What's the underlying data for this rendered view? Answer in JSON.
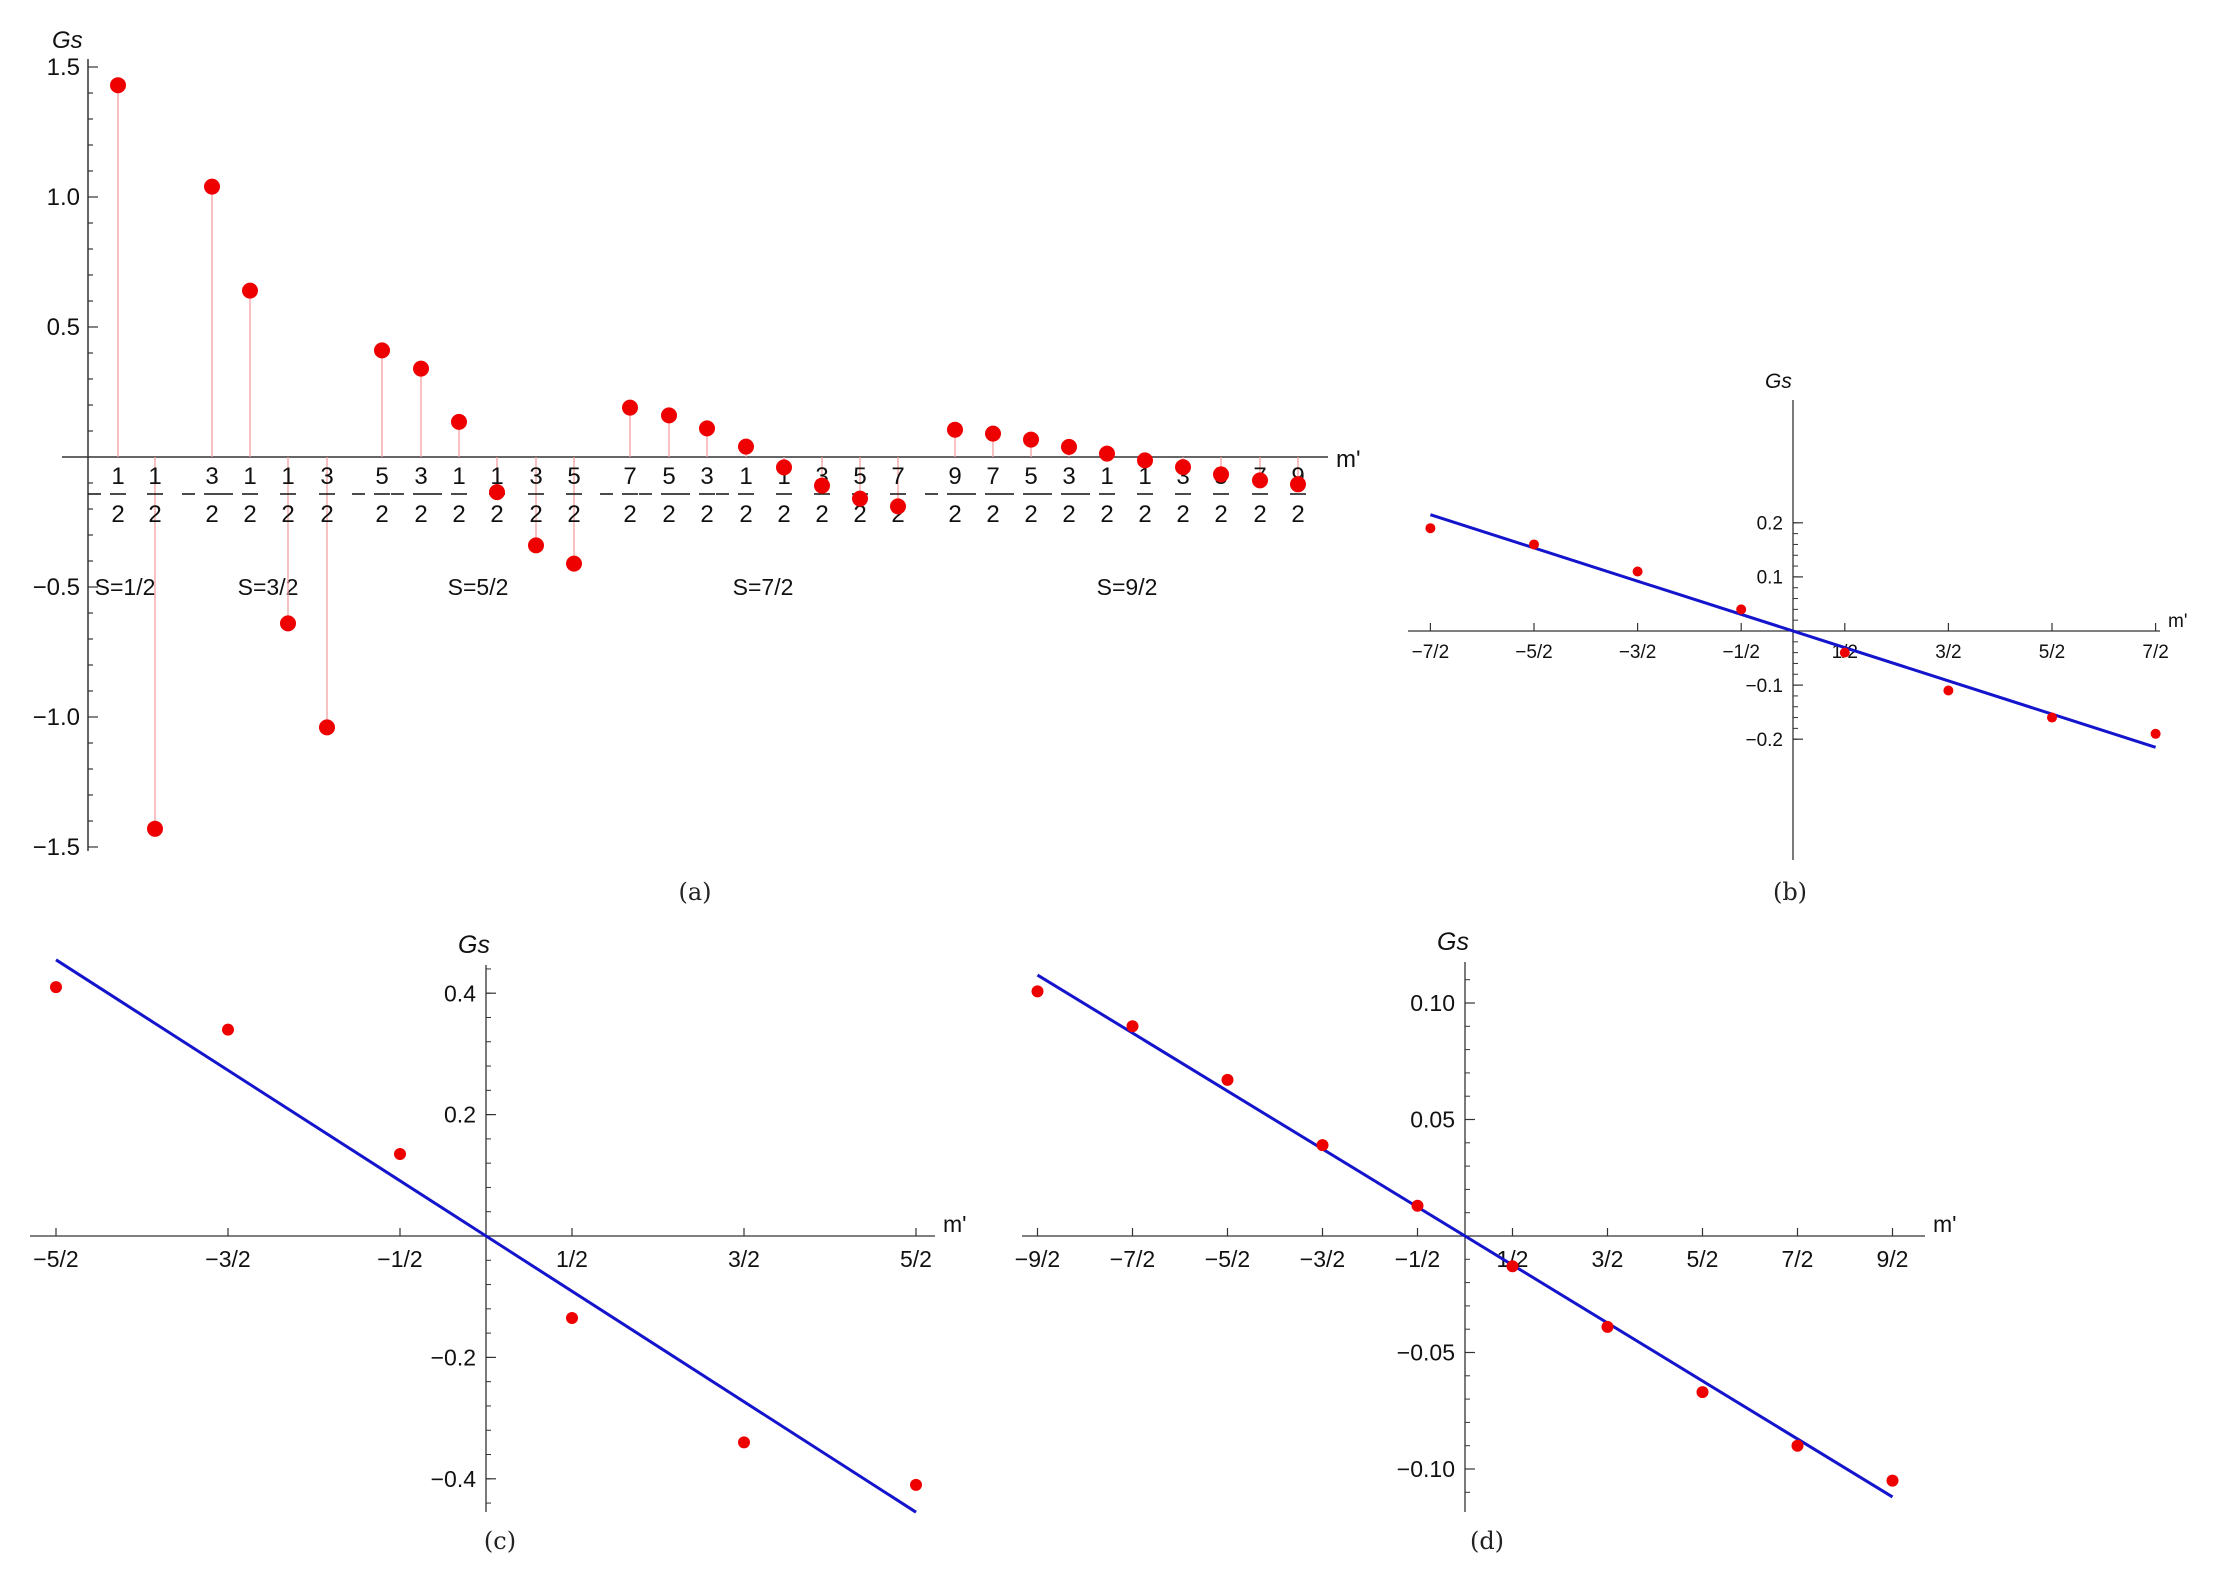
{
  "colors": {
    "points": "#ee0000",
    "stems": "#f3a0a0",
    "fit_line": "#1414cc",
    "axes": "#333333"
  },
  "chart_data": [
    {
      "panel": "a",
      "type": "scatter",
      "caption": "(a)",
      "xlabel": "m'",
      "ylabel": "Gs",
      "ylim": [
        -1.5,
        1.5
      ],
      "yticks": [
        "1.5",
        "1.0",
        "0.5",
        "−0.5",
        "−1.0",
        "−1.5"
      ],
      "groups": [
        {
          "label": "S=1/2",
          "points": [
            {
              "num": "1",
              "neg": true,
              "value": 1.43
            },
            {
              "num": "1",
              "neg": false,
              "value": -1.43
            }
          ]
        },
        {
          "label": "S=3/2",
          "points": [
            {
              "num": "3",
              "neg": true,
              "value": 1.04
            },
            {
              "num": "1",
              "neg": true,
              "value": 0.64
            },
            {
              "num": "1",
              "neg": false,
              "value": -0.64
            },
            {
              "num": "3",
              "neg": false,
              "value": -1.04
            }
          ]
        },
        {
          "label": "S=5/2",
          "points": [
            {
              "num": "5",
              "neg": true,
              "value": 0.41
            },
            {
              "num": "3",
              "neg": true,
              "value": 0.34
            },
            {
              "num": "1",
              "neg": true,
              "value": 0.135
            },
            {
              "num": "1",
              "neg": false,
              "value": -0.135
            },
            {
              "num": "3",
              "neg": false,
              "value": -0.34
            },
            {
              "num": "5",
              "neg": false,
              "value": -0.41
            }
          ]
        },
        {
          "label": "S=7/2",
          "points": [
            {
              "num": "7",
              "neg": true,
              "value": 0.19
            },
            {
              "num": "5",
              "neg": true,
              "value": 0.16
            },
            {
              "num": "3",
              "neg": true,
              "value": 0.11
            },
            {
              "num": "1",
              "neg": true,
              "value": 0.04
            },
            {
              "num": "1",
              "neg": false,
              "value": -0.04
            },
            {
              "num": "3",
              "neg": false,
              "value": -0.11
            },
            {
              "num": "5",
              "neg": false,
              "value": -0.16
            },
            {
              "num": "7",
              "neg": false,
              "value": -0.19
            }
          ]
        },
        {
          "label": "S=9/2",
          "points": [
            {
              "num": "9",
              "neg": true,
              "value": 0.105
            },
            {
              "num": "7",
              "neg": true,
              "value": 0.09
            },
            {
              "num": "5",
              "neg": true,
              "value": 0.067
            },
            {
              "num": "3",
              "neg": true,
              "value": 0.039
            },
            {
              "num": "1",
              "neg": true,
              "value": 0.013
            },
            {
              "num": "1",
              "neg": false,
              "value": -0.013
            },
            {
              "num": "3",
              "neg": false,
              "value": -0.039
            },
            {
              "num": "5",
              "neg": false,
              "value": -0.067
            },
            {
              "num": "7",
              "neg": false,
              "value": -0.09
            },
            {
              "num": "9",
              "neg": false,
              "value": -0.105
            }
          ]
        }
      ]
    },
    {
      "panel": "b",
      "type": "scatter",
      "caption": "(b)",
      "xlabel": "m'",
      "ylabel": "Gs",
      "xlim": [
        -3.5,
        3.5
      ],
      "ylim": [
        -0.2,
        0.2
      ],
      "xticks": [
        {
          "value": -3.5,
          "label": "−7/2"
        },
        {
          "value": -2.5,
          "label": "−5/2"
        },
        {
          "value": -1.5,
          "label": "−3/2"
        },
        {
          "value": -0.5,
          "label": "−1/2"
        },
        {
          "value": 0.5,
          "label": "1/2"
        },
        {
          "value": 1.5,
          "label": "3/2"
        },
        {
          "value": 2.5,
          "label": "5/2"
        },
        {
          "value": 3.5,
          "label": "7/2"
        }
      ],
      "yticks": [
        {
          "value": 0.2,
          "label": "0.2"
        },
        {
          "value": 0.1,
          "label": "0.1"
        },
        {
          "value": -0.1,
          "label": "−0.1"
        },
        {
          "value": -0.2,
          "label": "−0.2"
        }
      ],
      "points": [
        [
          -3.5,
          0.19
        ],
        [
          -2.5,
          0.16
        ],
        [
          -1.5,
          0.11
        ],
        [
          -0.5,
          0.04
        ],
        [
          0.5,
          -0.04
        ],
        [
          1.5,
          -0.11
        ],
        [
          2.5,
          -0.16
        ],
        [
          3.5,
          -0.19
        ]
      ],
      "fit_line": [
        [
          -3.5,
          0.215
        ],
        [
          3.5,
          -0.215
        ]
      ]
    },
    {
      "panel": "c",
      "type": "scatter",
      "caption": "(c)",
      "xlabel": "m'",
      "ylabel": "Gs",
      "xlim": [
        -2.5,
        2.5
      ],
      "ylim": [
        -0.4,
        0.4
      ],
      "xticks": [
        {
          "value": -2.5,
          "label": "−5/2"
        },
        {
          "value": -1.5,
          "label": "−3/2"
        },
        {
          "value": -0.5,
          "label": "−1/2"
        },
        {
          "value": 0.5,
          "label": "1/2"
        },
        {
          "value": 1.5,
          "label": "3/2"
        },
        {
          "value": 2.5,
          "label": "5/2"
        }
      ],
      "yticks": [
        {
          "value": 0.4,
          "label": "0.4"
        },
        {
          "value": 0.2,
          "label": "0.2"
        },
        {
          "value": -0.2,
          "label": "−0.2"
        },
        {
          "value": -0.4,
          "label": "−0.4"
        }
      ],
      "points": [
        [
          -2.5,
          0.41
        ],
        [
          -1.5,
          0.34
        ],
        [
          -0.5,
          0.135
        ],
        [
          0.5,
          -0.135
        ],
        [
          1.5,
          -0.34
        ],
        [
          2.5,
          -0.41
        ]
      ],
      "fit_line": [
        [
          -2.5,
          0.455
        ],
        [
          2.5,
          -0.455
        ]
      ]
    },
    {
      "panel": "d",
      "type": "scatter",
      "caption": "(d)",
      "xlabel": "m'",
      "ylabel": "Gs",
      "xlim": [
        -4.5,
        4.5
      ],
      "ylim": [
        -0.1,
        0.1
      ],
      "xticks": [
        {
          "value": -4.5,
          "label": "−9/2"
        },
        {
          "value": -3.5,
          "label": "−7/2"
        },
        {
          "value": -2.5,
          "label": "−5/2"
        },
        {
          "value": -1.5,
          "label": "−3/2"
        },
        {
          "value": -0.5,
          "label": "−1/2"
        },
        {
          "value": 0.5,
          "label": "1/2"
        },
        {
          "value": 1.5,
          "label": "3/2"
        },
        {
          "value": 2.5,
          "label": "5/2"
        },
        {
          "value": 3.5,
          "label": "7/2"
        },
        {
          "value": 4.5,
          "label": "9/2"
        }
      ],
      "yticks": [
        {
          "value": 0.1,
          "label": "0.10"
        },
        {
          "value": 0.05,
          "label": "0.05"
        },
        {
          "value": -0.05,
          "label": "−0.05"
        },
        {
          "value": -0.1,
          "label": "−0.10"
        }
      ],
      "points": [
        [
          -4.5,
          0.105
        ],
        [
          -3.5,
          0.09
        ],
        [
          -2.5,
          0.067
        ],
        [
          -1.5,
          0.039
        ],
        [
          -0.5,
          0.013
        ],
        [
          0.5,
          -0.013
        ],
        [
          1.5,
          -0.039
        ],
        [
          2.5,
          -0.067
        ],
        [
          3.5,
          -0.09
        ],
        [
          4.5,
          -0.105
        ]
      ],
      "fit_line": [
        [
          -4.5,
          0.112
        ],
        [
          4.5,
          -0.112
        ]
      ]
    }
  ]
}
